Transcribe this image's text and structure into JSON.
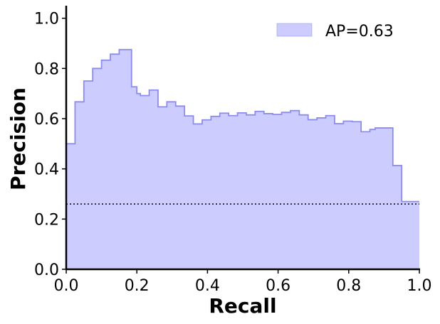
{
  "chart_data": {
    "type": "area",
    "title": "",
    "xlabel": "Recall",
    "ylabel": "Precision",
    "xlim": [
      0.0,
      1.0
    ],
    "ylim": [
      0.0,
      1.05
    ],
    "xticks": [
      "0.0",
      "0.2",
      "0.4",
      "0.6",
      "0.8",
      "1.0"
    ],
    "yticks": [
      "0.0",
      "0.2",
      "0.4",
      "0.6",
      "0.8",
      "1.0"
    ],
    "grid": false,
    "legend_position": "top-right",
    "series": [
      {
        "name": "AP=0.63",
        "step": "post",
        "fill_color": "#ccccff",
        "line_color": "#8c8cef",
        "recall": [
          0.0,
          0.025,
          0.05,
          0.075,
          0.1,
          0.125,
          0.15,
          0.175,
          0.185,
          0.2,
          0.21,
          0.235,
          0.26,
          0.285,
          0.31,
          0.335,
          0.36,
          0.385,
          0.41,
          0.435,
          0.46,
          0.485,
          0.51,
          0.535,
          0.56,
          0.585,
          0.61,
          0.635,
          0.66,
          0.685,
          0.71,
          0.735,
          0.76,
          0.785,
          0.81,
          0.835,
          0.86,
          0.875,
          0.9,
          0.925,
          0.95,
          0.975,
          1.0
        ],
        "precision": [
          0.5,
          0.667,
          0.75,
          0.8,
          0.833,
          0.857,
          0.875,
          0.875,
          0.727,
          0.7,
          0.692,
          0.714,
          0.647,
          0.667,
          0.65,
          0.611,
          0.579,
          0.595,
          0.609,
          0.622,
          0.612,
          0.623,
          0.615,
          0.629,
          0.62,
          0.617,
          0.625,
          0.632,
          0.615,
          0.596,
          0.603,
          0.612,
          0.58,
          0.59,
          0.588,
          0.548,
          0.557,
          0.563,
          0.563,
          0.413,
          0.27,
          0.27,
          0.27
        ]
      }
    ],
    "baseline": {
      "value": 0.26,
      "style": "dotted",
      "color": "#000000"
    }
  }
}
